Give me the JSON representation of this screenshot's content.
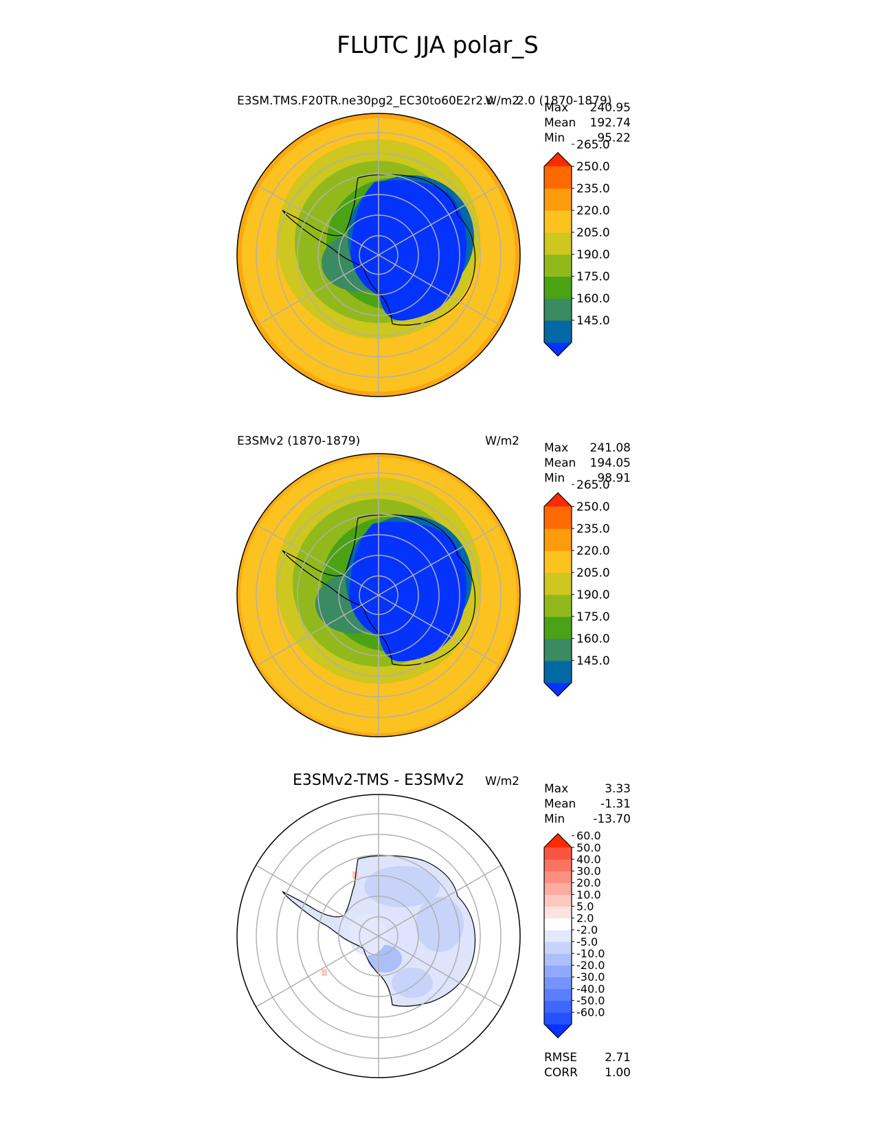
{
  "figure_title": "FLUTC JJA polar_S",
  "chart_data": [
    {
      "type": "heatmap",
      "projection": "south-polar-stereographic",
      "title_left": "E3SM.TMS.F20TR.ne30pg2_EC30to60E2r2.v",
      "title_overlap": "2.0 (1870-1879)",
      "units": "W/m2",
      "stats": [
        {
          "label": "Max",
          "value": "240.95"
        },
        {
          "label": "Mean",
          "value": "192.74"
        },
        {
          "label": "Min",
          "value": "95.22"
        }
      ],
      "colorbar": {
        "levels": [
          "145.0",
          "160.0",
          "175.0",
          "190.0",
          "205.0",
          "220.0",
          "235.0",
          "250.0",
          "265.0"
        ],
        "colors": [
          "#0433ff",
          "#0369a5",
          "#3a8a62",
          "#4aa314",
          "#92b91b",
          "#cdc71f",
          "#fcc21f",
          "#fc9b0b",
          "#fd6a02",
          "#fd2a02"
        ],
        "extend": "both"
      },
      "grid": true
    },
    {
      "type": "heatmap",
      "projection": "south-polar-stereographic",
      "title_left": "E3SMv2 (1870-1879)",
      "units": "W/m2",
      "stats": [
        {
          "label": "Max",
          "value": "241.08"
        },
        {
          "label": "Mean",
          "value": "194.05"
        },
        {
          "label": "Min",
          "value": "98.91"
        }
      ],
      "colorbar": {
        "levels": [
          "145.0",
          "160.0",
          "175.0",
          "190.0",
          "205.0",
          "220.0",
          "235.0",
          "250.0",
          "265.0"
        ],
        "colors": [
          "#0433ff",
          "#0369a5",
          "#3a8a62",
          "#4aa314",
          "#92b91b",
          "#cdc71f",
          "#fcc21f",
          "#fc9b0b",
          "#fd6a02",
          "#fd2a02"
        ],
        "extend": "both"
      },
      "grid": true
    },
    {
      "type": "heatmap",
      "projection": "south-polar-stereographic",
      "title_center": "E3SMv2-TMS - E3SMv2",
      "units": "W/m2",
      "stats": [
        {
          "label": "Max",
          "value": "3.33"
        },
        {
          "label": "Mean",
          "value": "-1.31"
        },
        {
          "label": "Min",
          "value": "-13.70"
        }
      ],
      "colorbar": {
        "levels": [
          "-60.0",
          "-50.0",
          "-40.0",
          "-30.0",
          "-20.0",
          "-10.0",
          "-5.0",
          "-2.0",
          "2.0",
          "5.0",
          "10.0",
          "20.0",
          "30.0",
          "40.0",
          "50.0",
          "60.0"
        ],
        "colors": [
          "#0433ff",
          "#2450fd",
          "#3f67fc",
          "#5a7efc",
          "#7593fb",
          "#90a9fa",
          "#acbff9",
          "#c7d3f9",
          "#e3e8fc",
          "#ffffff",
          "#fde3e0",
          "#fcc8c0",
          "#fcaca0",
          "#fb8f80",
          "#fa7262",
          "#f95440",
          "#fd2a02"
        ],
        "extend": "both"
      },
      "grid": true,
      "metrics": [
        {
          "label": "RMSE",
          "value": "2.71"
        },
        {
          "label": "CORR",
          "value": "1.00"
        }
      ]
    }
  ]
}
